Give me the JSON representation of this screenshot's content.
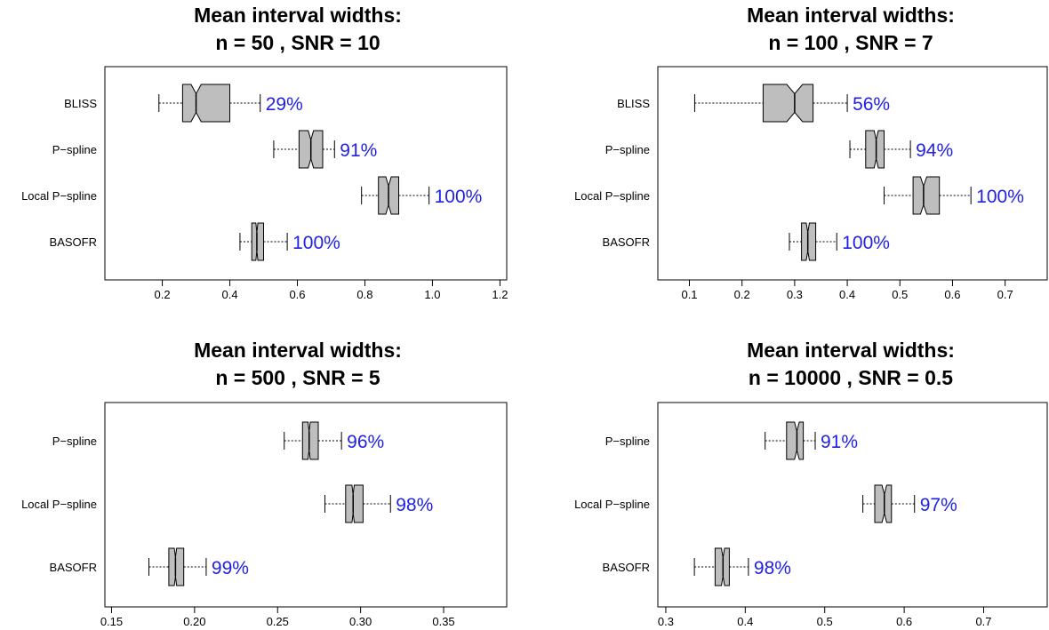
{
  "colors": {
    "box_fill": "#bebebe",
    "label": "#1f1fe6",
    "stroke": "#000000"
  },
  "chart_data": [
    {
      "type": "boxplot",
      "orientation": "horizontal",
      "notched": true,
      "title_line1": "Mean interval widths:",
      "title_line2": "n = 50 , SNR = 10",
      "xlim": [
        0.03,
        1.22
      ],
      "xticks": [
        "0.2",
        "0.4",
        "0.6",
        "0.8",
        "1.0",
        "1.2"
      ],
      "grid": false,
      "series": [
        {
          "name": "BLISS",
          "whisker_low": 0.19,
          "q1": 0.26,
          "notch_low": 0.285,
          "median": 0.3,
          "notch_high": 0.315,
          "q3": 0.4,
          "whisker_high": 0.49,
          "label": "29%"
        },
        {
          "name": "P−spline",
          "whisker_low": 0.53,
          "q1": 0.605,
          "notch_low": 0.632,
          "median": 0.64,
          "notch_high": 0.648,
          "q3": 0.675,
          "whisker_high": 0.71,
          "label": "91%"
        },
        {
          "name": "Local P−spline",
          "whisker_low": 0.79,
          "q1": 0.84,
          "notch_low": 0.862,
          "median": 0.87,
          "notch_high": 0.878,
          "q3": 0.9,
          "whisker_high": 0.99,
          "label": "100%"
        },
        {
          "name": "BASOFR",
          "whisker_low": 0.43,
          "q1": 0.465,
          "notch_low": 0.477,
          "median": 0.48,
          "notch_high": 0.483,
          "q3": 0.5,
          "whisker_high": 0.57,
          "label": "100%"
        }
      ]
    },
    {
      "type": "boxplot",
      "orientation": "horizontal",
      "notched": true,
      "title_line1": "Mean interval widths:",
      "title_line2": "n = 100 , SNR = 7",
      "xlim": [
        0.04,
        0.78
      ],
      "xticks": [
        "0.1",
        "0.2",
        "0.3",
        "0.4",
        "0.5",
        "0.6",
        "0.7"
      ],
      "grid": false,
      "series": [
        {
          "name": "BLISS",
          "whisker_low": 0.11,
          "q1": 0.24,
          "notch_low": 0.285,
          "median": 0.3,
          "notch_high": 0.315,
          "q3": 0.335,
          "whisker_high": 0.4,
          "label": "56%"
        },
        {
          "name": "P−spline",
          "whisker_low": 0.405,
          "q1": 0.435,
          "notch_low": 0.451,
          "median": 0.455,
          "notch_high": 0.459,
          "q3": 0.47,
          "whisker_high": 0.52,
          "label": "94%"
        },
        {
          "name": "Local P−spline",
          "whisker_low": 0.47,
          "q1": 0.525,
          "notch_low": 0.539,
          "median": 0.545,
          "notch_high": 0.551,
          "q3": 0.575,
          "whisker_high": 0.635,
          "label": "100%"
        },
        {
          "name": "BASOFR",
          "whisker_low": 0.29,
          "q1": 0.313,
          "notch_low": 0.322,
          "median": 0.325,
          "notch_high": 0.328,
          "q3": 0.34,
          "whisker_high": 0.38,
          "label": "100%"
        }
      ]
    },
    {
      "type": "boxplot",
      "orientation": "horizontal",
      "notched": true,
      "title_line1": "Mean interval widths:",
      "title_line2": "n = 500 , SNR = 5",
      "xlim": [
        0.146,
        0.388
      ],
      "xticks": [
        "0.15",
        "0.20",
        "0.25",
        "0.30",
        "0.35"
      ],
      "grid": false,
      "series": [
        {
          "name": "P−spline",
          "whisker_low": 0.254,
          "q1": 0.265,
          "notch_low": 0.2683,
          "median": 0.269,
          "notch_high": 0.2697,
          "q3": 0.2745,
          "whisker_high": 0.2885,
          "label": "96%"
        },
        {
          "name": "Local P−spline",
          "whisker_low": 0.2785,
          "q1": 0.291,
          "notch_low": 0.2948,
          "median": 0.2955,
          "notch_high": 0.2962,
          "q3": 0.3015,
          "whisker_high": 0.318,
          "label": "98%"
        },
        {
          "name": "BASOFR",
          "whisker_low": 0.1725,
          "q1": 0.1845,
          "notch_low": 0.1878,
          "median": 0.1885,
          "notch_high": 0.1892,
          "q3": 0.1935,
          "whisker_high": 0.207,
          "label": "99%"
        }
      ]
    },
    {
      "type": "boxplot",
      "orientation": "horizontal",
      "notched": true,
      "title_line1": "Mean interval widths:",
      "title_line2": "n = 10000 , SNR = 0.5",
      "xlim": [
        0.29,
        0.78
      ],
      "xticks": [
        "0.3",
        "0.4",
        "0.5",
        "0.6",
        "0.7"
      ],
      "grid": false,
      "series": [
        {
          "name": "P−spline",
          "whisker_low": 0.425,
          "q1": 0.452,
          "notch_low": 0.462,
          "median": 0.465,
          "notch_high": 0.468,
          "q3": 0.473,
          "whisker_high": 0.488,
          "label": "91%"
        },
        {
          "name": "Local P−spline",
          "whisker_low": 0.548,
          "q1": 0.563,
          "notch_low": 0.572,
          "median": 0.575,
          "notch_high": 0.578,
          "q3": 0.584,
          "whisker_high": 0.613,
          "label": "97%"
        },
        {
          "name": "BASOFR",
          "whisker_low": 0.336,
          "q1": 0.362,
          "notch_low": 0.37,
          "median": 0.372,
          "notch_high": 0.374,
          "q3": 0.38,
          "whisker_high": 0.404,
          "label": "98%"
        }
      ]
    }
  ]
}
